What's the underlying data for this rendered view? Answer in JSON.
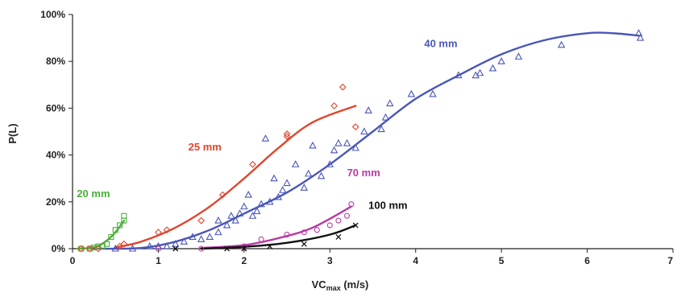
{
  "chart_data": {
    "type": "scatter",
    "title": "",
    "xlabel": "VC",
    "xlabel_sub": "max",
    "xlabel_unit": " (m/s)",
    "ylabel": "P(L)",
    "xlim": [
      0,
      7
    ],
    "ylim": [
      0,
      1
    ],
    "xticks": [
      "0",
      "1",
      "2",
      "3",
      "4",
      "5",
      "6",
      "7"
    ],
    "yticks": [
      "0%",
      "20%",
      "40%",
      "60%",
      "80%",
      "100%"
    ],
    "grid": false,
    "legend": "none",
    "series": [
      {
        "name": "20 mm",
        "color": "#4caf3c",
        "marker": "square",
        "label_at": [
          0.05,
          0.22
        ],
        "points": [
          [
            0.1,
            0.0
          ],
          [
            0.2,
            0.0
          ],
          [
            0.25,
            0.005
          ],
          [
            0.3,
            0.01
          ],
          [
            0.35,
            0.01
          ],
          [
            0.4,
            0.02
          ],
          [
            0.45,
            0.05
          ],
          [
            0.5,
            0.08
          ],
          [
            0.55,
            0.1
          ],
          [
            0.6,
            0.12
          ],
          [
            0.6,
            0.14
          ]
        ],
        "fit": [
          [
            0.05,
            0.0
          ],
          [
            0.2,
            0.003
          ],
          [
            0.3,
            0.012
          ],
          [
            0.4,
            0.035
          ],
          [
            0.5,
            0.07
          ],
          [
            0.6,
            0.12
          ]
        ]
      },
      {
        "name": "25 mm",
        "color": "#e0452e",
        "marker": "diamond",
        "label_at": [
          1.35,
          0.42
        ],
        "points": [
          [
            0.1,
            0.0
          ],
          [
            0.2,
            0.0
          ],
          [
            0.3,
            0.0
          ],
          [
            0.55,
            0.01
          ],
          [
            0.6,
            0.02
          ],
          [
            1.0,
            0.07
          ],
          [
            1.1,
            0.08
          ],
          [
            1.5,
            0.12
          ],
          [
            1.75,
            0.23
          ],
          [
            2.1,
            0.36
          ],
          [
            2.5,
            0.49
          ],
          [
            2.5,
            0.48
          ],
          [
            3.05,
            0.61
          ],
          [
            3.15,
            0.69
          ],
          [
            3.3,
            0.52
          ]
        ],
        "fit": [
          [
            0.5,
            0.005
          ],
          [
            0.8,
            0.03
          ],
          [
            1.2,
            0.09
          ],
          [
            1.6,
            0.18
          ],
          [
            2.0,
            0.3
          ],
          [
            2.4,
            0.43
          ],
          [
            2.8,
            0.54
          ],
          [
            3.3,
            0.61
          ]
        ]
      },
      {
        "name": "40 mm",
        "color": "#4a56b8",
        "marker": "triangle",
        "label_at": [
          4.1,
          0.86
        ],
        "points": [
          [
            0.5,
            0.0
          ],
          [
            0.7,
            0.0
          ],
          [
            0.9,
            0.01
          ],
          [
            1.0,
            0.01
          ],
          [
            1.1,
            0.01
          ],
          [
            1.2,
            0.02
          ],
          [
            1.3,
            0.03
          ],
          [
            1.4,
            0.05
          ],
          [
            1.5,
            0.04
          ],
          [
            1.6,
            0.05
          ],
          [
            1.7,
            0.07
          ],
          [
            1.7,
            0.12
          ],
          [
            1.8,
            0.1
          ],
          [
            1.85,
            0.14
          ],
          [
            1.9,
            0.12
          ],
          [
            1.95,
            0.15
          ],
          [
            2.0,
            0.18
          ],
          [
            2.05,
            0.23
          ],
          [
            2.1,
            0.14
          ],
          [
            2.15,
            0.16
          ],
          [
            2.2,
            0.19
          ],
          [
            2.25,
            0.47
          ],
          [
            2.3,
            0.2
          ],
          [
            2.35,
            0.3
          ],
          [
            2.4,
            0.22
          ],
          [
            2.45,
            0.25
          ],
          [
            2.5,
            0.28
          ],
          [
            2.6,
            0.36
          ],
          [
            2.7,
            0.26
          ],
          [
            2.75,
            0.32
          ],
          [
            2.8,
            0.44
          ],
          [
            2.9,
            0.31
          ],
          [
            3.0,
            0.36
          ],
          [
            3.05,
            0.42
          ],
          [
            3.1,
            0.45
          ],
          [
            3.2,
            0.45
          ],
          [
            3.3,
            0.43
          ],
          [
            3.4,
            0.5
          ],
          [
            3.45,
            0.59
          ],
          [
            3.6,
            0.51
          ],
          [
            3.65,
            0.56
          ],
          [
            3.7,
            0.62
          ],
          [
            3.95,
            0.66
          ],
          [
            4.2,
            0.66
          ],
          [
            4.5,
            0.74
          ],
          [
            4.7,
            0.74
          ],
          [
            4.75,
            0.75
          ],
          [
            4.9,
            0.77
          ],
          [
            5.0,
            0.8
          ],
          [
            5.2,
            0.82
          ],
          [
            5.7,
            0.87
          ],
          [
            6.6,
            0.92
          ],
          [
            6.62,
            0.9
          ]
        ],
        "fit": [
          [
            0.3,
            0.0
          ],
          [
            0.8,
            0.003
          ],
          [
            1.2,
            0.03
          ],
          [
            1.6,
            0.08
          ],
          [
            2.0,
            0.15
          ],
          [
            2.5,
            0.24
          ],
          [
            3.0,
            0.36
          ],
          [
            3.5,
            0.5
          ],
          [
            4.0,
            0.64
          ],
          [
            4.5,
            0.74
          ],
          [
            5.0,
            0.83
          ],
          [
            5.5,
            0.89
          ],
          [
            6.0,
            0.92
          ],
          [
            6.3,
            0.92
          ],
          [
            6.6,
            0.91
          ]
        ]
      },
      {
        "name": "70 mm",
        "color": "#b93aa6",
        "marker": "circle",
        "label_at": [
          3.2,
          0.31
        ],
        "points": [
          [
            1.0,
            0.0
          ],
          [
            1.5,
            0.0
          ],
          [
            2.0,
            0.01
          ],
          [
            2.2,
            0.04
          ],
          [
            2.5,
            0.06
          ],
          [
            2.7,
            0.07
          ],
          [
            2.85,
            0.08
          ],
          [
            3.0,
            0.1
          ],
          [
            3.1,
            0.12
          ],
          [
            3.2,
            0.14
          ],
          [
            3.25,
            0.19
          ]
        ],
        "fit": [
          [
            1.5,
            0.003
          ],
          [
            2.0,
            0.015
          ],
          [
            2.4,
            0.045
          ],
          [
            2.8,
            0.09
          ],
          [
            3.25,
            0.18
          ]
        ]
      },
      {
        "name": "100 mm",
        "color": "#111111",
        "marker": "cross",
        "label_at": [
          3.45,
          0.17
        ],
        "points": [
          [
            1.2,
            0.0
          ],
          [
            1.8,
            0.0
          ],
          [
            2.0,
            0.0
          ],
          [
            2.3,
            0.01
          ],
          [
            2.7,
            0.02
          ],
          [
            3.1,
            0.05
          ],
          [
            3.3,
            0.1
          ]
        ],
        "fit": [
          [
            1.5,
            0.0
          ],
          [
            2.0,
            0.008
          ],
          [
            2.5,
            0.025
          ],
          [
            3.0,
            0.06
          ],
          [
            3.3,
            0.1
          ]
        ]
      }
    ]
  }
}
